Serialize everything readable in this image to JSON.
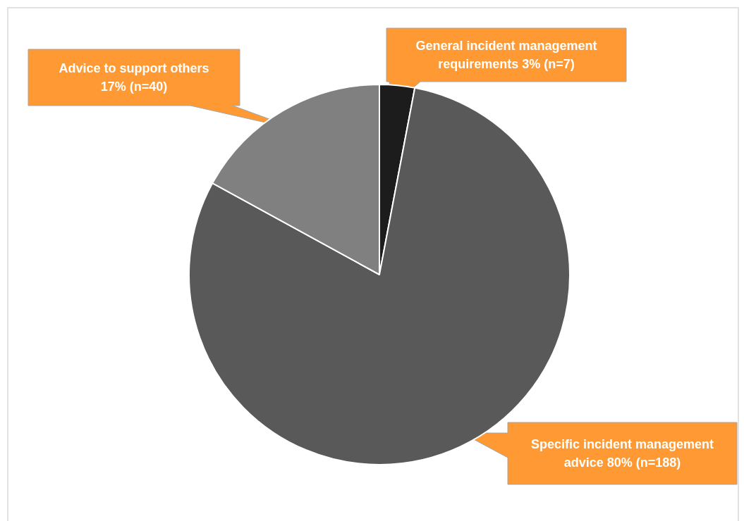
{
  "chart_data": {
    "type": "pie",
    "categories": [
      "General incident management requirements",
      "Specific incident management advice",
      "Advice to support others"
    ],
    "values": [
      7,
      188,
      40
    ],
    "value_labels": [
      "3% (n=7)",
      "80% (n=188)",
      "17% (n=40)"
    ],
    "colors": [
      "#1c1c1c",
      "#595959",
      "#808080"
    ]
  }
}
